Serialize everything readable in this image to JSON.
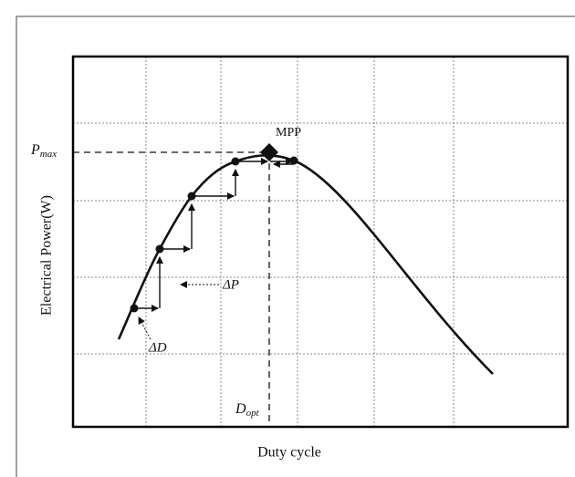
{
  "labels": {
    "mpp": "MPP",
    "p_max": {
      "main": "P",
      "sub": "max"
    },
    "delta_p": "ΔP",
    "delta_d": "ΔD",
    "d_opt": {
      "main": "D",
      "sub": "opt"
    },
    "y_axis": "Electrical Power(W)",
    "x_axis": "Duty cycle"
  }
}
